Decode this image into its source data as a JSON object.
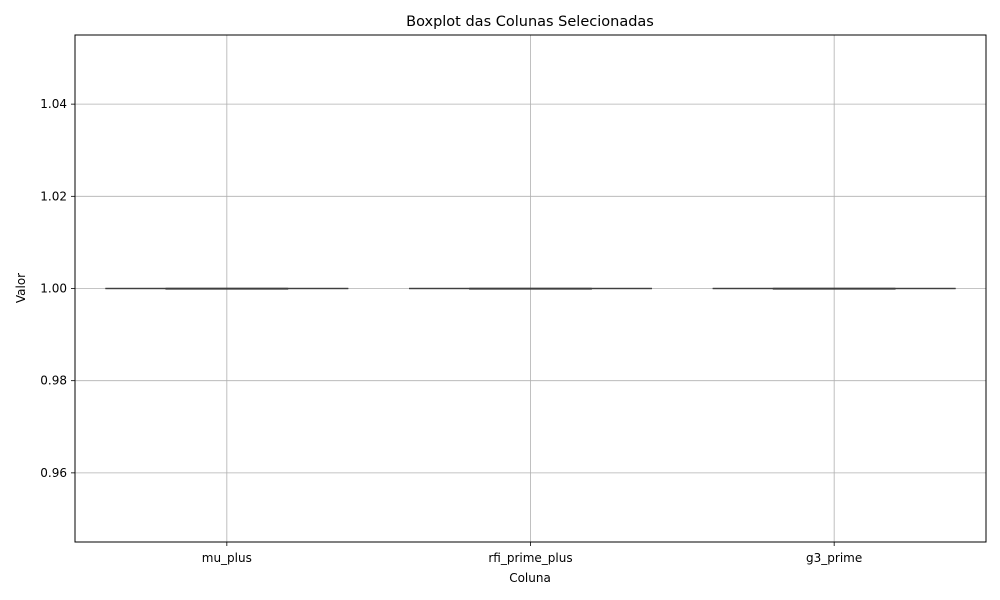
{
  "chart_data": {
    "type": "boxplot",
    "title": "Boxplot das Colunas Selecionadas",
    "xlabel": "Coluna",
    "ylabel": "Valor",
    "categories": [
      "mu_plus",
      "rfi_prime_plus",
      "g3_prime"
    ],
    "boxes": [
      {
        "category": "mu_plus",
        "min": 1.0,
        "q1": 1.0,
        "median": 1.0,
        "q3": 1.0,
        "max": 1.0
      },
      {
        "category": "rfi_prime_plus",
        "min": 1.0,
        "q1": 1.0,
        "median": 1.0,
        "q3": 1.0,
        "max": 1.0
      },
      {
        "category": "g3_prime",
        "min": 1.0,
        "q1": 1.0,
        "median": 1.0,
        "q3": 1.0,
        "max": 1.0
      }
    ],
    "ylim": [
      0.945,
      1.055
    ],
    "yticks": [
      0.96,
      0.98,
      1.0,
      1.02,
      1.04
    ],
    "ytick_labels": [
      "0.96",
      "0.98",
      "1.00",
      "1.02",
      "1.04"
    ],
    "grid": true,
    "colors": {
      "box_line": "#3f3f3f",
      "grid": "#b0b0b0",
      "axis": "#000000"
    }
  }
}
